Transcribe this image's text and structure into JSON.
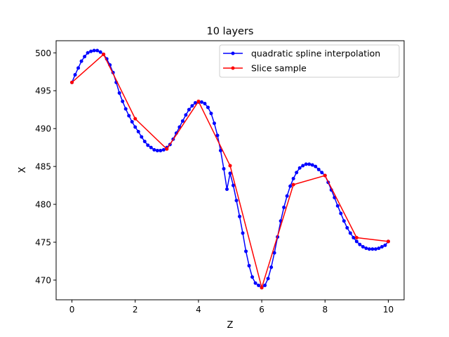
{
  "chart_data": {
    "type": "line",
    "title": "10 layers",
    "xlabel": "Z",
    "ylabel": "X",
    "xlim": [
      -0.5,
      10.5
    ],
    "ylim": [
      467.4,
      501.6
    ],
    "xticks": [
      0,
      2,
      4,
      6,
      8,
      10
    ],
    "yticks": [
      470,
      475,
      480,
      485,
      490,
      495,
      500
    ],
    "grid": false,
    "legend_position": "top-right",
    "series": [
      {
        "name": "quadratic spline interpolation",
        "color": "#0000ff",
        "marker": "circle",
        "x": [
          0.0,
          0.1,
          0.2,
          0.3,
          0.4,
          0.5,
          0.6,
          0.7,
          0.8,
          0.9,
          1.0,
          1.1,
          1.2,
          1.3,
          1.4,
          1.5,
          1.6,
          1.7,
          1.8,
          1.9,
          2.0,
          2.1,
          2.2,
          2.3,
          2.4,
          2.5,
          2.6,
          2.7,
          2.8,
          2.9,
          3.0,
          3.1,
          3.2,
          3.3,
          3.4,
          3.5,
          3.6,
          3.7,
          3.8,
          3.9,
          4.0,
          4.1,
          4.2,
          4.3,
          4.4,
          4.5,
          4.6,
          4.7,
          4.8,
          4.9,
          5.0,
          5.1,
          5.2,
          5.3,
          5.4,
          5.5,
          5.6,
          5.7,
          5.8,
          5.9,
          6.0,
          6.1,
          6.2,
          6.3,
          6.4,
          6.5,
          6.6,
          6.7,
          6.8,
          6.9,
          7.0,
          7.1,
          7.2,
          7.3,
          7.4,
          7.5,
          7.6,
          7.7,
          7.8,
          7.9,
          8.0,
          8.1,
          8.2,
          8.3,
          8.4,
          8.5,
          8.6,
          8.7,
          8.8,
          8.9,
          9.0,
          9.1,
          9.2,
          9.3,
          9.4,
          9.5,
          9.6,
          9.7,
          9.8,
          9.9,
          10.0
        ],
        "y": [
          496.1,
          497.1,
          498.0,
          498.9,
          499.5,
          500.0,
          500.2,
          500.3,
          500.3,
          500.1,
          499.8,
          499.2,
          498.4,
          497.4,
          496.1,
          494.7,
          493.6,
          492.6,
          491.7,
          490.9,
          490.2,
          489.6,
          488.9,
          488.3,
          487.8,
          487.5,
          487.2,
          487.1,
          487.1,
          487.2,
          487.5,
          487.9,
          488.6,
          489.4,
          490.2,
          491.0,
          491.8,
          492.5,
          493.0,
          493.4,
          493.5,
          493.5,
          493.3,
          492.8,
          492.0,
          490.7,
          489.1,
          487.1,
          484.7,
          482.0,
          484.1,
          482.5,
          480.5,
          478.4,
          476.2,
          473.8,
          471.9,
          470.4,
          469.6,
          469.3,
          469.0,
          469.3,
          470.2,
          471.7,
          473.6,
          475.7,
          477.8,
          479.6,
          481.1,
          482.4,
          483.4,
          484.2,
          484.8,
          485.1,
          485.3,
          485.3,
          485.2,
          485.0,
          484.6,
          484.2,
          483.8,
          482.9,
          481.9,
          480.9,
          479.8,
          478.8,
          477.8,
          476.9,
          476.2,
          475.6,
          475.1,
          474.7,
          474.4,
          474.2,
          474.1,
          474.1,
          474.1,
          474.2,
          474.4,
          474.6,
          475.1
        ]
      },
      {
        "name": "Slice sample",
        "color": "#ff0000",
        "marker": "circle",
        "x": [
          0,
          1,
          2,
          3,
          4,
          5,
          6,
          7,
          8,
          9,
          10
        ],
        "y": [
          496.1,
          499.8,
          491.3,
          487.3,
          493.6,
          485.1,
          469.0,
          482.6,
          483.8,
          475.6,
          475.1
        ]
      }
    ]
  }
}
